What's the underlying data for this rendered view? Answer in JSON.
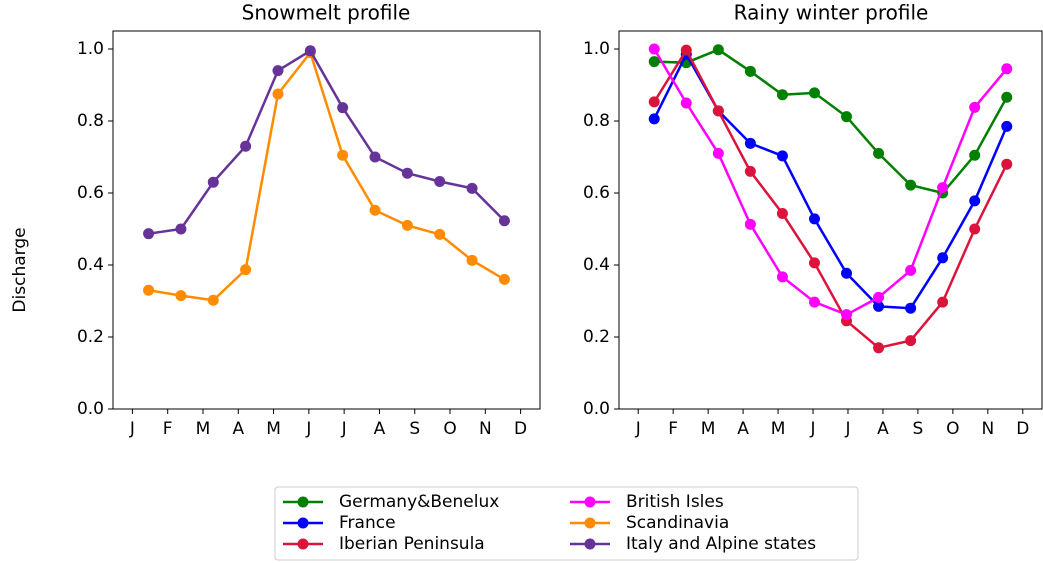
{
  "chart_data": [
    {
      "type": "line",
      "title": "Snowmelt profile",
      "ylabel": "Discharge",
      "x": [
        0.458,
        1.375,
        2.292,
        3.208,
        4.125,
        5.042,
        5.958,
        6.875,
        7.792,
        8.708,
        9.625,
        10.542
      ],
      "xlim": [
        -0.55,
        11.55
      ],
      "xticks": [
        {
          "value": 0,
          "label": "J"
        },
        {
          "value": 1,
          "label": "F"
        },
        {
          "value": 2,
          "label": "M"
        },
        {
          "value": 3,
          "label": "A"
        },
        {
          "value": 4,
          "label": "M"
        },
        {
          "value": 5,
          "label": "J"
        },
        {
          "value": 6,
          "label": "J"
        },
        {
          "value": 7,
          "label": "A"
        },
        {
          "value": 8,
          "label": "S"
        },
        {
          "value": 9,
          "label": "O"
        },
        {
          "value": 10,
          "label": "N"
        },
        {
          "value": 11,
          "label": "D"
        }
      ],
      "ylim": [
        0,
        1.05
      ],
      "yticks": [
        {
          "value": 0,
          "label": "0.0"
        },
        0.2,
        0.4,
        0.6,
        0.8,
        {
          "value": 1,
          "label": "1.0"
        }
      ],
      "series": [
        {
          "name": "Scandinavia",
          "color": "#ff8c00",
          "values": [
            0.33,
            0.315,
            0.302,
            0.387,
            0.875,
            0.99,
            0.705,
            0.552,
            0.51,
            0.485,
            0.413,
            0.36
          ]
        },
        {
          "name": "Italy and Alpine states",
          "color": "#663399",
          "values": [
            0.487,
            0.5,
            0.63,
            0.73,
            0.94,
            0.995,
            0.837,
            0.7,
            0.655,
            0.632,
            0.613,
            0.523
          ]
        }
      ]
    },
    {
      "type": "line",
      "title": "Rainy winter profile",
      "x": [
        0.458,
        1.375,
        2.292,
        3.208,
        4.125,
        5.042,
        5.958,
        6.875,
        7.792,
        8.708,
        9.625,
        10.542
      ],
      "xlim": [
        -0.55,
        11.55
      ],
      "xticks": [
        {
          "value": 0,
          "label": "J"
        },
        {
          "value": 1,
          "label": "F"
        },
        {
          "value": 2,
          "label": "M"
        },
        {
          "value": 3,
          "label": "A"
        },
        {
          "value": 4,
          "label": "M"
        },
        {
          "value": 5,
          "label": "J"
        },
        {
          "value": 6,
          "label": "J"
        },
        {
          "value": 7,
          "label": "A"
        },
        {
          "value": 8,
          "label": "S"
        },
        {
          "value": 9,
          "label": "O"
        },
        {
          "value": 10,
          "label": "N"
        },
        {
          "value": 11,
          "label": "D"
        }
      ],
      "ylim": [
        0,
        1.05
      ],
      "yticks": [
        {
          "value": 0,
          "label": "0.0"
        },
        0.2,
        0.4,
        0.6,
        0.8,
        {
          "value": 1,
          "label": "1.0"
        }
      ],
      "series": [
        {
          "name": "Germany&Benelux",
          "color": "#008000",
          "values": [
            0.965,
            0.962,
            0.998,
            0.938,
            0.873,
            0.878,
            0.812,
            0.71,
            0.622,
            0.6,
            0.705,
            0.866
          ]
        },
        {
          "name": "France",
          "color": "#0000ff",
          "values": [
            0.806,
            0.985,
            0.828,
            0.738,
            0.703,
            0.528,
            0.377,
            0.285,
            0.28,
            0.42,
            0.578,
            0.785
          ]
        },
        {
          "name": "Iberian Peninsula",
          "color": "#dc143c",
          "values": [
            0.853,
            0.997,
            0.828,
            0.66,
            0.543,
            0.406,
            0.245,
            0.17,
            0.19,
            0.297,
            0.5,
            0.68
          ]
        },
        {
          "name": "British Isles",
          "color": "#ff00ff",
          "values": [
            1.0,
            0.85,
            0.71,
            0.513,
            0.367,
            0.297,
            0.262,
            0.31,
            0.385,
            0.615,
            0.838,
            0.945
          ]
        }
      ]
    }
  ]
}
